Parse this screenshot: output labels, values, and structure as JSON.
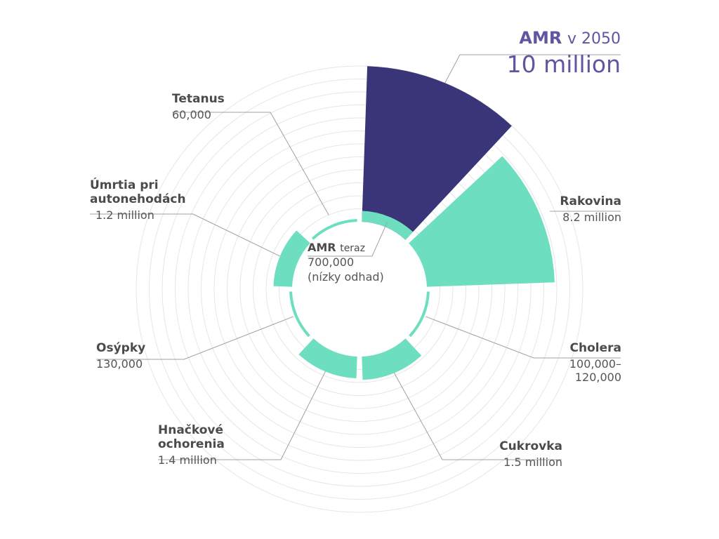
{
  "chart_data": {
    "type": "polar-bar",
    "colors": {
      "highlight": "#3a3578",
      "series": "#6ddfc0",
      "grid": "#e6e6e6",
      "leader": "#a0a0a0",
      "accent_text": "#5f55a0"
    },
    "max_value": 10000000,
    "slices": [
      {
        "key": "amr_future",
        "label": "AMR",
        "label_suffix": "v 2050",
        "value": 10000000,
        "value_label": "10 million",
        "highlight": true
      },
      {
        "key": "cancer",
        "label": "Rakovina",
        "value": 8200000,
        "value_label": "8.2 million"
      },
      {
        "key": "cholera",
        "label": "Cholera",
        "value": 120000,
        "value_label": "100,000–\n120,000"
      },
      {
        "key": "diabetes",
        "label": "Cukrovka",
        "value": 1500000,
        "value_label": "1.5 million"
      },
      {
        "key": "diarrhoea",
        "label": "Hnačkové\nochorenia",
        "value": 1400000,
        "value_label": "1.4 million"
      },
      {
        "key": "measles",
        "label": "Osýpky",
        "value": 130000,
        "value_label": "130,000"
      },
      {
        "key": "road",
        "label": "Úmrtia pri\nautonehodách",
        "value": 1200000,
        "value_label": "1.2 million"
      },
      {
        "key": "tetanus",
        "label": "Tetanus",
        "value": 60000,
        "value_label": "60,000"
      }
    ],
    "amr_now": {
      "label": "AMR",
      "label_suffix": "teraz",
      "value": 700000,
      "value_label": "700,000",
      "note": "(nízky odhad)"
    }
  }
}
